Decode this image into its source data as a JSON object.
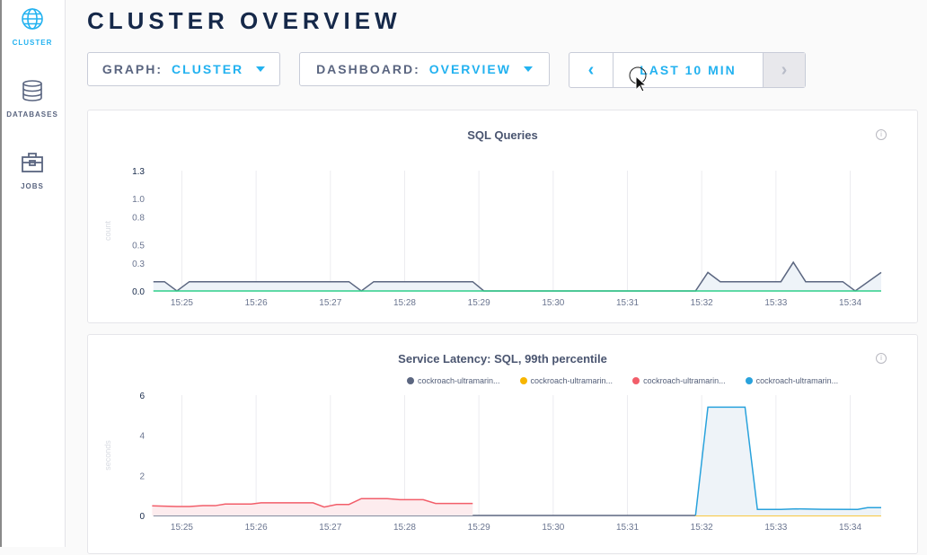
{
  "sidebar": {
    "items": [
      {
        "label": "CLUSTER",
        "icon": "globe-icon",
        "active": true
      },
      {
        "label": "DATABASES",
        "icon": "database-icon"
      },
      {
        "label": "JOBS",
        "icon": "briefcase-icon"
      }
    ]
  },
  "page_title": "CLUSTER OVERVIEW",
  "controls": {
    "graph": {
      "label": "GRAPH:",
      "value": "CLUSTER"
    },
    "dashboard": {
      "label": "DASHBOARD:",
      "value": "OVERVIEW"
    },
    "time_range": {
      "prev": "‹",
      "value": "LAST 10 MIN",
      "next": "›"
    }
  },
  "colors": {
    "accent": "#23b2f0",
    "title": "#152849",
    "gray_series": "#5b6680",
    "green_series": "#2fcf8a",
    "yellow_series": "#f7b500",
    "red_series": "#f25e6a",
    "blue_series": "#29a2dc"
  },
  "chart_data": [
    {
      "type": "line",
      "title": "SQL Queries",
      "ylabel": "count",
      "ylim": [
        0,
        1.3
      ],
      "yticks": [
        "0.0",
        "0.3",
        "0.5",
        "0.8",
        "1.0",
        "1.3"
      ],
      "xticks": [
        "15:25",
        "15:26",
        "15:27",
        "15:28",
        "15:29",
        "15:30",
        "15:31",
        "15:32",
        "15:33",
        "15:34"
      ],
      "xlim": [
        "15:24:35",
        "15:34:25"
      ],
      "series": [
        {
          "color": "#5b6680",
          "fill": true,
          "points": [
            [
              "15:24:37",
              0.1
            ],
            [
              "15:24:46",
              0.1
            ],
            [
              "15:24:56",
              0
            ],
            [
              "15:25:06",
              0.1
            ],
            [
              "15:27:15",
              0.1
            ],
            [
              "15:27:25",
              0
            ],
            [
              "15:27:35",
              0.1
            ],
            [
              "15:28:55",
              0.1
            ],
            [
              "15:29:04",
              0
            ],
            [
              "15:31:55",
              0
            ],
            [
              "15:32:05",
              0.2
            ],
            [
              "15:32:15",
              0.1
            ],
            [
              "15:33:04",
              0.1
            ],
            [
              "15:33:14",
              0.31
            ],
            [
              "15:33:24",
              0.1
            ],
            [
              "15:33:54",
              0.1
            ],
            [
              "15:34:04",
              0
            ],
            [
              "15:34:25",
              0.2
            ]
          ]
        },
        {
          "color": "#2fcf8a",
          "fill": false,
          "points": [
            [
              "15:24:37",
              0
            ],
            [
              "15:34:25",
              0
            ]
          ]
        }
      ]
    },
    {
      "type": "line",
      "title": "Service Latency: SQL, 99th percentile",
      "ylabel": "seconds",
      "ylim": [
        0,
        6
      ],
      "yticks": [
        "0",
        "2",
        "4",
        "6"
      ],
      "xticks": [
        "15:25",
        "15:26",
        "15:27",
        "15:28",
        "15:29",
        "15:30",
        "15:31",
        "15:32",
        "15:33",
        "15:34"
      ],
      "xlim": [
        "15:24:35",
        "15:34:25"
      ],
      "legend": [
        "cockroach-ultramarin...",
        "cockroach-ultramarin...",
        "cockroach-ultramarin...",
        "cockroach-ultramarin..."
      ],
      "series": [
        {
          "name": "cockroach-ultramarin...",
          "color": "#5b6680",
          "fill": false,
          "points": [
            [
              "15:24:37",
              0
            ],
            [
              "15:31:55",
              0
            ]
          ]
        },
        {
          "name": "cockroach-ultramarin...",
          "color": "#f7b500",
          "fill": false,
          "points": [
            [
              "15:31:55",
              0
            ],
            [
              "15:34:25",
              0
            ]
          ]
        },
        {
          "name": "cockroach-ultramarin...",
          "color": "#f25e6a",
          "fill": true,
          "points": [
            [
              "15:24:36",
              0.48
            ],
            [
              "15:24:56",
              0.45
            ],
            [
              "15:25:06",
              0.45
            ],
            [
              "15:25:17",
              0.49
            ],
            [
              "15:25:27",
              0.49
            ],
            [
              "15:25:35",
              0.57
            ],
            [
              "15:25:56",
              0.57
            ],
            [
              "15:26:04",
              0.63
            ],
            [
              "15:26:46",
              0.63
            ],
            [
              "15:26:55",
              0.42
            ],
            [
              "15:27:05",
              0.55
            ],
            [
              "15:27:15",
              0.55
            ],
            [
              "15:27:25",
              0.84
            ],
            [
              "15:27:46",
              0.84
            ],
            [
              "15:27:56",
              0.79
            ],
            [
              "15:28:15",
              0.79
            ],
            [
              "15:28:25",
              0.6
            ],
            [
              "15:28:55",
              0.6
            ]
          ]
        },
        {
          "name": "cockroach-ultramarin...",
          "color": "#29a2dc",
          "fill": true,
          "points": [
            [
              "15:31:55",
              0
            ],
            [
              "15:32:05",
              5.4
            ],
            [
              "15:32:35",
              5.4
            ],
            [
              "15:32:45",
              0.3
            ],
            [
              "15:33:04",
              0.3
            ],
            [
              "15:33:16",
              0.33
            ],
            [
              "15:33:37",
              0.31
            ],
            [
              "15:34:06",
              0.3
            ],
            [
              "15:34:14",
              0.39
            ],
            [
              "15:34:25",
              0.39
            ]
          ]
        }
      ]
    }
  ]
}
